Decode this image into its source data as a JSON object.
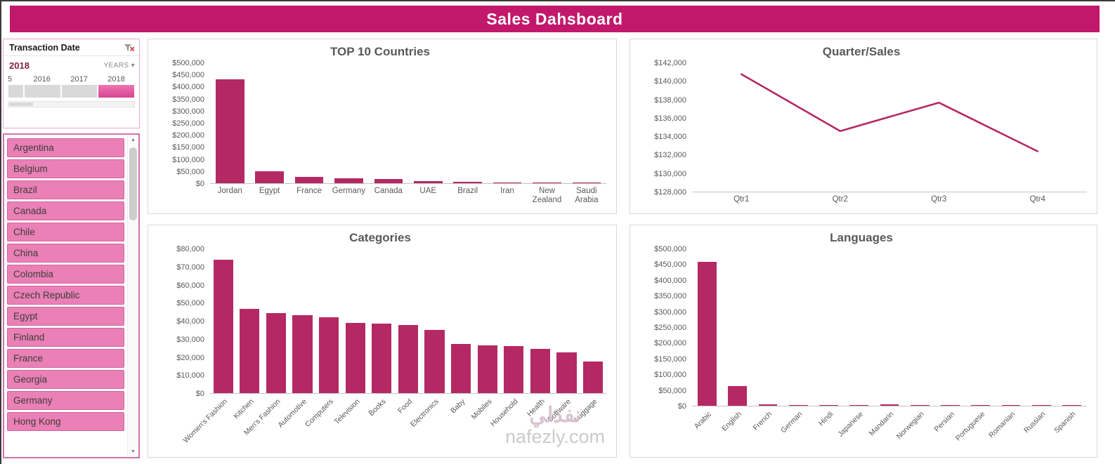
{
  "colors": {
    "accent": "#c2186b",
    "bar": "#b42964",
    "slicer_button_bg": "#ea80b5",
    "slicer_button_border": "#d163a2",
    "axis_text": "#595959",
    "card_border": "#d9d9d9"
  },
  "header": {
    "title": "Sales Dahsboard"
  },
  "icons": {
    "clear_filter": "filter-with-red-x",
    "dropdown_arrow": "▾",
    "scroll_up": "▲",
    "scroll_down": "▼"
  },
  "sidebar": {
    "date_slicer": {
      "title": "Transaction Date",
      "selected_period": "2018",
      "granularity_label": "YEARS",
      "timeline_years": [
        "5",
        "2016",
        "2017",
        "2018"
      ],
      "active_year": "2018"
    },
    "country_slicer": {
      "items": [
        "Argentina",
        "Belgium",
        "Brazil",
        "Canada",
        "Chile",
        "China",
        "Colombia",
        "Czech Republic",
        "Egypt",
        "Finland",
        "France",
        "Georgia",
        "Germany",
        "Hong Kong"
      ]
    }
  },
  "watermark": {
    "arabic": "نفذلي",
    "latin": "nafezly.com"
  },
  "chart_data": [
    {
      "type": "bar",
      "title": "TOP 10 Countries",
      "categories": [
        "Jordan",
        "Egypt",
        "France",
        "Germany",
        "Canada",
        "UAE",
        "Brazil",
        "Iran",
        "New Zealand",
        "Saudi Arabia"
      ],
      "values": [
        432000,
        50000,
        26000,
        20000,
        17000,
        9000,
        6000,
        4000,
        3000,
        2500
      ],
      "ylabel": "",
      "xlabel": "",
      "ylim": [
        0,
        500000
      ],
      "ytick": 50000,
      "value_format": "currency",
      "grid": false,
      "legend": "none",
      "rotate_labels": false,
      "label_area": 34,
      "bar_width_pct": 72
    },
    {
      "type": "line",
      "title": "Quarter/Sales",
      "x": [
        "Qtr1",
        "Qtr2",
        "Qtr3",
        "Qtr4"
      ],
      "values": [
        140800,
        134600,
        137700,
        132400
      ],
      "ylabel": "",
      "xlabel": "",
      "ylim": [
        128000,
        142000
      ],
      "ytick": 2000,
      "value_format": "currency",
      "grid": false,
      "legend": "none",
      "rotate_labels": false,
      "label_area": 22
    },
    {
      "type": "bar",
      "title": "Categories",
      "categories": [
        "Women's Fashion",
        "Kitchen",
        "Men's Fashion",
        "Automotive",
        "Computers",
        "Television",
        "Books",
        "Food",
        "Electronics",
        "Baby",
        "Mobiles",
        "Household",
        "Health",
        "Software",
        "Luggage"
      ],
      "values": [
        74000,
        47000,
        44500,
        43500,
        42000,
        39000,
        38500,
        38000,
        35000,
        27500,
        26500,
        26000,
        24500,
        22500,
        17500
      ],
      "ylabel": "",
      "xlabel": "",
      "ylim": [
        0,
        80000
      ],
      "ytick": 10000,
      "value_format": "currency",
      "grid": false,
      "legend": "none",
      "rotate_labels": true,
      "label_area": 82,
      "bar_width_pct": 75
    },
    {
      "type": "bar",
      "title": "Languages",
      "categories": [
        "Arabic",
        "English",
        "French",
        "German",
        "Hindi",
        "Japanese",
        "Mandarin",
        "Norwegian",
        "Persian",
        "Portuguese",
        "Romanian",
        "Russian",
        "Spanish"
      ],
      "values": [
        460000,
        62000,
        3500,
        3000,
        3000,
        3000,
        3500,
        2500,
        3000,
        3000,
        2500,
        3000,
        3000
      ],
      "ylabel": "",
      "xlabel": "",
      "ylim": [
        0,
        500000
      ],
      "ytick": 50000,
      "value_format": "currency",
      "grid": false,
      "legend": "none",
      "rotate_labels": true,
      "label_area": 64,
      "bar_width_pct": 62
    }
  ]
}
